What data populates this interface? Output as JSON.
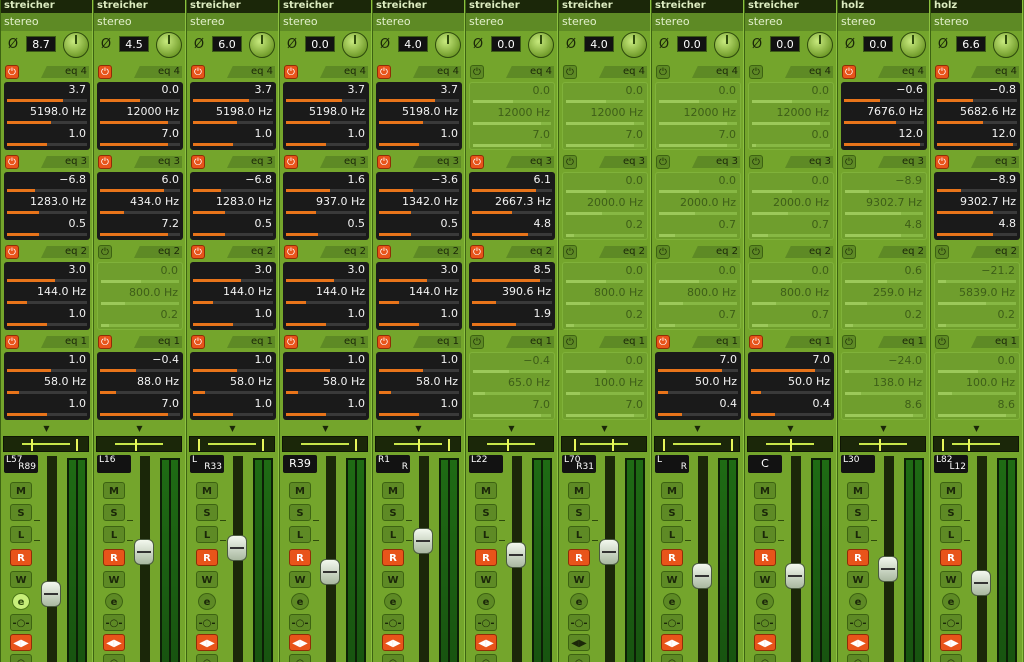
{
  "channels": [
    {
      "name": "streicher",
      "mode": "stereo",
      "trim": "8.7",
      "eq": [
        {
          "label": "eq 4",
          "on": true,
          "gain": "3.7",
          "freq": "5198.0 Hz",
          "q": "1.0",
          "bars": [
            0.7,
            0.55,
            0.5
          ]
        },
        {
          "label": "eq 3",
          "on": true,
          "gain": "−6.8",
          "freq": "1283.0 Hz",
          "q": "0.5",
          "bars": [
            0.35,
            0.4,
            0.4
          ]
        },
        {
          "label": "eq 2",
          "on": true,
          "gain": "3.0",
          "freq": "144.0 Hz",
          "q": "1.0",
          "bars": [
            0.6,
            0.25,
            0.5
          ]
        },
        {
          "label": "eq 1",
          "on": true,
          "gain": "1.0",
          "freq": "58.0 Hz",
          "q": "1.0",
          "bars": [
            0.55,
            0.15,
            0.5
          ]
        }
      ],
      "pan": {
        "left": "L57",
        "right": "R89",
        "center": ""
      },
      "pan_pos": [
        0.3,
        0.9
      ],
      "buttons": {
        "r": true,
        "e": true
      },
      "fader_level": 0.42
    },
    {
      "name": "streicher",
      "mode": "stereo",
      "trim": "4.5",
      "eq": [
        {
          "label": "eq 4",
          "on": true,
          "gain": "0.0",
          "freq": "12000 Hz",
          "q": "7.0",
          "bars": [
            0.5,
            0.85,
            0.85
          ]
        },
        {
          "label": "eq 3",
          "on": true,
          "gain": "6.0",
          "freq": "434.0 Hz",
          "q": "7.2",
          "bars": [
            0.8,
            0.3,
            0.85
          ]
        },
        {
          "label": "eq 2",
          "on": false,
          "gain": "0.0",
          "freq": "800.0 Hz",
          "q": "0.2",
          "bars": [
            0.5,
            0.3,
            0.1
          ]
        },
        {
          "label": "eq 1",
          "on": true,
          "gain": "−0.4",
          "freq": "88.0 Hz",
          "q": "7.0",
          "bars": [
            0.45,
            0.2,
            0.85
          ]
        }
      ],
      "pan": {
        "left": "L16",
        "right": "",
        "center": ""
      },
      "pan_pos": [
        0.45,
        0.45
      ],
      "buttons": {
        "r": true,
        "e": false
      },
      "fader_level": 0.72
    },
    {
      "name": "streicher",
      "mode": "stereo",
      "trim": "6.0",
      "eq": [
        {
          "label": "eq 4",
          "on": true,
          "gain": "3.7",
          "freq": "5198.0 Hz",
          "q": "1.0",
          "bars": [
            0.7,
            0.55,
            0.5
          ]
        },
        {
          "label": "eq 3",
          "on": true,
          "gain": "−6.8",
          "freq": "1283.0 Hz",
          "q": "0.5",
          "bars": [
            0.35,
            0.4,
            0.4
          ]
        },
        {
          "label": "eq 2",
          "on": true,
          "gain": "3.0",
          "freq": "144.0 Hz",
          "q": "1.0",
          "bars": [
            0.6,
            0.25,
            0.5
          ]
        },
        {
          "label": "eq 1",
          "on": true,
          "gain": "1.0",
          "freq": "58.0 Hz",
          "q": "1.0",
          "bars": [
            0.55,
            0.15,
            0.5
          ]
        }
      ],
      "pan": {
        "left": "L",
        "right": "R33",
        "center": ""
      },
      "pan_pos": [
        0.05,
        0.9
      ],
      "buttons": {
        "r": true,
        "e": false
      },
      "fader_level": 0.75
    },
    {
      "name": "streicher",
      "mode": "stereo",
      "trim": "0.0",
      "eq": [
        {
          "label": "eq 4",
          "on": true,
          "gain": "3.7",
          "freq": "5198.0 Hz",
          "q": "1.0",
          "bars": [
            0.7,
            0.55,
            0.5
          ]
        },
        {
          "label": "eq 3",
          "on": true,
          "gain": "1.6",
          "freq": "937.0 Hz",
          "q": "0.5",
          "bars": [
            0.55,
            0.38,
            0.4
          ]
        },
        {
          "label": "eq 2",
          "on": true,
          "gain": "3.0",
          "freq": "144.0 Hz",
          "q": "1.0",
          "bars": [
            0.6,
            0.25,
            0.5
          ]
        },
        {
          "label": "eq 1",
          "on": true,
          "gain": "1.0",
          "freq": "58.0 Hz",
          "q": "1.0",
          "bars": [
            0.55,
            0.15,
            0.5
          ]
        }
      ],
      "pan": {
        "left": "",
        "right": "",
        "center": "R39"
      },
      "pan_pos": [
        0.9,
        0.9
      ],
      "buttons": {
        "r": true,
        "e": false
      },
      "fader_level": 0.58
    },
    {
      "name": "streicher",
      "mode": "stereo",
      "trim": "4.0",
      "eq": [
        {
          "label": "eq 4",
          "on": true,
          "gain": "3.7",
          "freq": "5198.0 Hz",
          "q": "1.0",
          "bars": [
            0.7,
            0.55,
            0.5
          ]
        },
        {
          "label": "eq 3",
          "on": true,
          "gain": "−3.6",
          "freq": "1342.0 Hz",
          "q": "0.5",
          "bars": [
            0.42,
            0.4,
            0.4
          ]
        },
        {
          "label": "eq 2",
          "on": true,
          "gain": "3.0",
          "freq": "144.0 Hz",
          "q": "1.0",
          "bars": [
            0.6,
            0.25,
            0.5
          ]
        },
        {
          "label": "eq 1",
          "on": true,
          "gain": "1.0",
          "freq": "58.0 Hz",
          "q": "1.0",
          "bars": [
            0.55,
            0.15,
            0.5
          ]
        }
      ],
      "pan": {
        "left": "R1",
        "right": "R",
        "center": ""
      },
      "pan_pos": [
        0.5,
        0.9
      ],
      "buttons": {
        "r": true,
        "e": false
      },
      "fader_level": 0.8
    },
    {
      "name": "streicher",
      "mode": "stereo",
      "trim": "0.0",
      "eq": [
        {
          "label": "eq 4",
          "on": false,
          "gain": "0.0",
          "freq": "12000 Hz",
          "q": "7.0",
          "bars": [
            0.5,
            0.85,
            0.85
          ]
        },
        {
          "label": "eq 3",
          "on": true,
          "gain": "6.1",
          "freq": "2667.3 Hz",
          "q": "4.8",
          "bars": [
            0.8,
            0.5,
            0.7
          ]
        },
        {
          "label": "eq 2",
          "on": true,
          "gain": "8.5",
          "freq": "390.6 Hz",
          "q": "1.9",
          "bars": [
            0.85,
            0.3,
            0.55
          ]
        },
        {
          "label": "eq 1",
          "on": false,
          "gain": "−0.4",
          "freq": "65.0 Hz",
          "q": "7.0",
          "bars": [
            0.45,
            0.15,
            0.85
          ]
        }
      ],
      "pan": {
        "left": "L22",
        "right": "",
        "center": ""
      },
      "pan_pos": [
        0.45,
        0.45
      ],
      "buttons": {
        "r": true,
        "e": false
      },
      "fader_level": 0.7
    },
    {
      "name": "streicher",
      "mode": "stereo",
      "trim": "4.0",
      "eq": [
        {
          "label": "eq 4",
          "on": false,
          "gain": "0.0",
          "freq": "12000 Hz",
          "q": "7.0",
          "bars": [
            0.5,
            0.85,
            0.85
          ]
        },
        {
          "label": "eq 3",
          "on": false,
          "gain": "0.0",
          "freq": "2000.0 Hz",
          "q": "0.2",
          "bars": [
            0.5,
            0.45,
            0.1
          ]
        },
        {
          "label": "eq 2",
          "on": false,
          "gain": "0.0",
          "freq": "800.0 Hz",
          "q": "0.2",
          "bars": [
            0.5,
            0.3,
            0.1
          ]
        },
        {
          "label": "eq 1",
          "on": false,
          "gain": "0.0",
          "freq": "100.0 Hz",
          "q": "7.0",
          "bars": [
            0.5,
            0.18,
            0.85
          ]
        }
      ],
      "pan": {
        "left": "L70",
        "right": "R31",
        "center": ""
      },
      "pan_pos": [
        0.1,
        0.6
      ],
      "buttons": {
        "r": true,
        "e": false
      },
      "fader_level": 0.72
    },
    {
      "name": "streicher",
      "mode": "stereo",
      "trim": "0.0",
      "eq": [
        {
          "label": "eq 4",
          "on": false,
          "gain": "0.0",
          "freq": "12000 Hz",
          "q": "7.0",
          "bars": [
            0.5,
            0.85,
            0.85
          ]
        },
        {
          "label": "eq 3",
          "on": false,
          "gain": "0.0",
          "freq": "2000.0 Hz",
          "q": "0.7",
          "bars": [
            0.5,
            0.45,
            0.2
          ]
        },
        {
          "label": "eq 2",
          "on": false,
          "gain": "0.0",
          "freq": "800.0 Hz",
          "q": "0.7",
          "bars": [
            0.5,
            0.3,
            0.2
          ]
        },
        {
          "label": "eq 1",
          "on": true,
          "gain": "7.0",
          "freq": "50.0 Hz",
          "q": "0.4",
          "bars": [
            0.8,
            0.12,
            0.3
          ]
        }
      ],
      "pan": {
        "left": "L",
        "right": "R",
        "center": ""
      },
      "pan_pos": [
        0.05,
        0.95
      ],
      "buttons": {
        "r": true,
        "e": false
      },
      "fader_level": 0.55
    },
    {
      "name": "streicher",
      "mode": "stereo",
      "trim": "0.0",
      "eq": [
        {
          "label": "eq 4",
          "on": false,
          "gain": "0.0",
          "freq": "12000 Hz",
          "q": "0.0",
          "bars": [
            0.5,
            0.85,
            0.05
          ]
        },
        {
          "label": "eq 3",
          "on": false,
          "gain": "0.0",
          "freq": "2000.0 Hz",
          "q": "0.7",
          "bars": [
            0.5,
            0.45,
            0.2
          ]
        },
        {
          "label": "eq 2",
          "on": false,
          "gain": "0.0",
          "freq": "800.0 Hz",
          "q": "0.7",
          "bars": [
            0.5,
            0.3,
            0.2
          ]
        },
        {
          "label": "eq 1",
          "on": true,
          "gain": "7.0",
          "freq": "50.0 Hz",
          "q": "0.4",
          "bars": [
            0.8,
            0.12,
            0.3
          ]
        }
      ],
      "pan": {
        "left": "",
        "right": "",
        "center": "C"
      },
      "pan_pos": [
        0.5,
        0.5
      ],
      "buttons": {
        "r": true,
        "e": false
      },
      "fader_level": 0.55
    },
    {
      "name": "holz",
      "mode": "stereo",
      "trim": "0.0",
      "eq": [
        {
          "label": "eq 4",
          "on": true,
          "gain": "−0.6",
          "freq": "7676.0 Hz",
          "q": "12.0",
          "bars": [
            0.45,
            0.65,
            0.95
          ]
        },
        {
          "label": "eq 3",
          "on": false,
          "gain": "−8.9",
          "freq": "9302.7 Hz",
          "q": "4.8",
          "bars": [
            0.3,
            0.7,
            0.7
          ]
        },
        {
          "label": "eq 2",
          "on": false,
          "gain": "0.6",
          "freq": "259.0 Hz",
          "q": "0.2",
          "bars": [
            0.52,
            0.28,
            0.1
          ]
        },
        {
          "label": "eq 1",
          "on": false,
          "gain": "−24.0",
          "freq": "138.0 Hz",
          "q": "8.6",
          "bars": [
            0.05,
            0.2,
            0.85
          ]
        }
      ],
      "pan": {
        "left": "L30",
        "right": "",
        "center": ""
      },
      "pan_pos": [
        0.45,
        0.45
      ],
      "buttons": {
        "r": true,
        "e": false
      },
      "fader_level": 0.6
    },
    {
      "name": "holz",
      "mode": "stereo",
      "trim": "6.6",
      "eq": [
        {
          "label": "eq 4",
          "on": true,
          "gain": "−0.8",
          "freq": "5682.6 Hz",
          "q": "12.0",
          "bars": [
            0.45,
            0.58,
            0.95
          ]
        },
        {
          "label": "eq 3",
          "on": true,
          "gain": "−8.9",
          "freq": "9302.7 Hz",
          "q": "4.8",
          "bars": [
            0.3,
            0.7,
            0.7
          ]
        },
        {
          "label": "eq 2",
          "on": false,
          "gain": "−21.2",
          "freq": "5839.0 Hz",
          "q": "0.2",
          "bars": [
            0.1,
            0.6,
            0.1
          ]
        },
        {
          "label": "eq 1",
          "on": false,
          "gain": "0.0",
          "freq": "100.0 Hz",
          "q": "8.6",
          "bars": [
            0.5,
            0.18,
            0.85
          ]
        }
      ],
      "pan": {
        "left": "L82",
        "right": "L12",
        "center": ""
      },
      "pan_pos": [
        0.05,
        0.4
      ],
      "buttons": {
        "r": true,
        "e": false
      },
      "fader_level": 0.5
    }
  ],
  "labels": {
    "m": "M",
    "s": "S",
    "l": "L",
    "r": "R",
    "w": "W",
    "e": "e",
    "phase_glyph": "Ø",
    "power_glyph": "⏻",
    "arrow_glyph": "▼",
    "insert_glyph": "-○-",
    "pan_glyph": "◀▶"
  },
  "colors": {
    "accent_orange": "#e8541a",
    "panel_green": "#74a52c",
    "dark": "#1b2709"
  }
}
